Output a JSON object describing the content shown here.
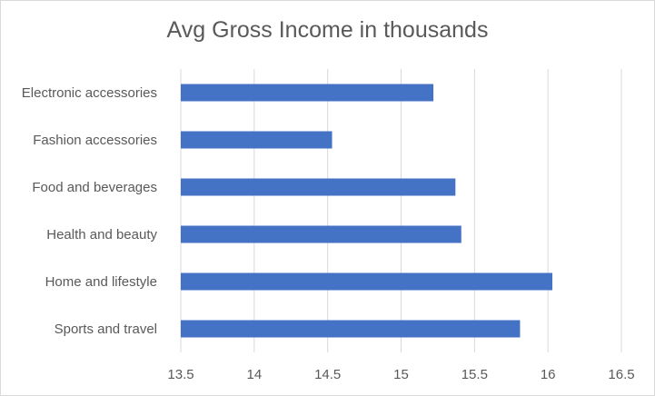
{
  "chart_data": {
    "type": "bar",
    "orientation": "horizontal",
    "title": "Avg Gross Income in thousands",
    "categories": [
      "Electronic accessories",
      "Fashion accessories",
      "Food and beverages",
      "Health and beauty",
      "Home and lifestyle",
      "Sports and travel"
    ],
    "values": [
      15.22,
      14.53,
      15.37,
      15.41,
      16.03,
      15.81
    ],
    "xlim": [
      13.5,
      16.5
    ],
    "xticks": [
      "13.5",
      "14",
      "14.5",
      "15",
      "15.5",
      "16",
      "16.5"
    ],
    "xlabel": "",
    "ylabel": "",
    "grid": "vertical",
    "legend": "none",
    "bar_color": "#4472c4",
    "grid_color": "#d9d9d9"
  }
}
